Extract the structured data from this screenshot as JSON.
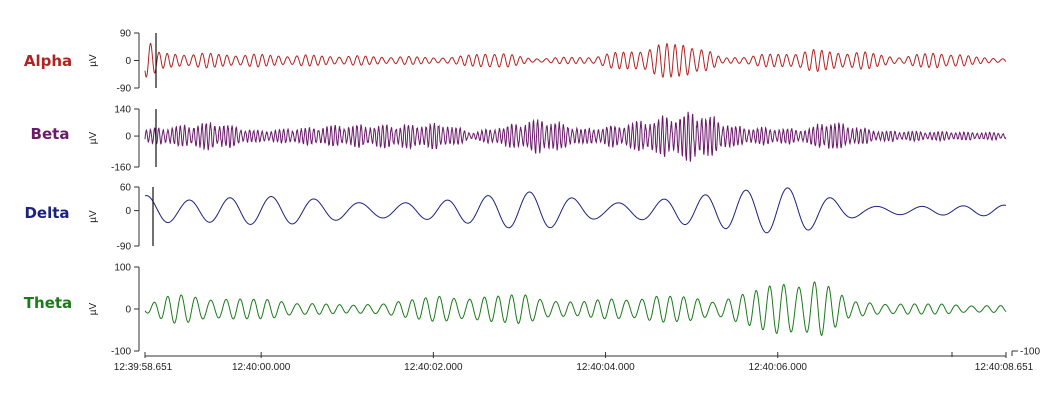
{
  "chart_data": {
    "type": "line",
    "layout": "stacked-traces",
    "x_unit": "time",
    "x_start": "12:39:58.651",
    "x_end": "12:40:08.651",
    "x_start_seconds": 0,
    "x_end_seconds": 10,
    "x_ticks": [
      {
        "seconds": 0,
        "label": "12:39:58.651"
      },
      {
        "seconds": 1.349,
        "label": "12:40:00.000"
      },
      {
        "seconds": 3.349,
        "label": "12:40:02.000"
      },
      {
        "seconds": 5.349,
        "label": "12:40:04.000"
      },
      {
        "seconds": 7.349,
        "label": "12:40:06.000"
      },
      {
        "seconds": 10,
        "label": "12:40:08.651"
      }
    ],
    "right_axis_label": "-100",
    "unit_label": "µV",
    "grid": false,
    "series": [
      {
        "name": "Alpha",
        "color": "#b22222",
        "ylim": [
          -90,
          90
        ],
        "yticks": [
          "90",
          "0",
          "-90"
        ],
        "dominant_frequency_hz": 10,
        "envelope_amplitude_uv": [
          [
            0.05,
            70
          ],
          [
            0.15,
            30
          ],
          [
            1.4,
            22
          ],
          [
            3.6,
            12
          ],
          [
            4.0,
            35
          ],
          [
            4.5,
            8
          ],
          [
            5.2,
            15
          ],
          [
            6.3,
            75
          ],
          [
            6.7,
            10
          ],
          [
            7.3,
            25
          ],
          [
            7.8,
            40
          ],
          [
            8.4,
            30
          ],
          [
            8.8,
            12
          ],
          [
            9.2,
            35
          ],
          [
            9.6,
            15
          ],
          [
            10,
            8
          ]
        ]
      },
      {
        "name": "Beta",
        "color": "#6a1b6a",
        "ylim": [
          -160,
          140
        ],
        "yticks": [
          "140",
          "0",
          "-160"
        ],
        "dominant_frequency_hz": 20,
        "envelope_amplitude_uv": [
          [
            0,
            40
          ],
          [
            0.8,
            80
          ],
          [
            1.3,
            30
          ],
          [
            2.2,
            60
          ],
          [
            3.5,
            70
          ],
          [
            3.8,
            20
          ],
          [
            4.6,
            100
          ],
          [
            5.1,
            40
          ],
          [
            5.6,
            70
          ],
          [
            6.4,
            140
          ],
          [
            6.9,
            50
          ],
          [
            7.7,
            40
          ],
          [
            7.9,
            90
          ],
          [
            8.5,
            30
          ],
          [
            10,
            20
          ]
        ]
      },
      {
        "name": "Delta",
        "color": "#1a237e",
        "ylim": [
          -90,
          60
        ],
        "yticks": [
          "60",
          "0",
          "-90"
        ],
        "dominant_frequency_hz": 2,
        "envelope_amplitude_uv": [
          [
            0,
            70
          ],
          [
            0.4,
            40
          ],
          [
            2.0,
            35
          ],
          [
            3.2,
            35
          ],
          [
            4.6,
            50
          ],
          [
            5.3,
            30
          ],
          [
            6.2,
            55
          ],
          [
            7.6,
            60
          ],
          [
            8.4,
            20
          ],
          [
            10,
            15
          ]
        ]
      },
      {
        "name": "Theta",
        "color": "#1b7a1b",
        "ylim": [
          -100,
          100
        ],
        "yticks": [
          "100",
          "0",
          "-100"
        ],
        "dominant_frequency_hz": 6,
        "envelope_amplitude_uv": [
          [
            0,
            10
          ],
          [
            0.3,
            40
          ],
          [
            1.5,
            25
          ],
          [
            2.4,
            10
          ],
          [
            3.4,
            35
          ],
          [
            4.4,
            40
          ],
          [
            5.0,
            20
          ],
          [
            6.0,
            40
          ],
          [
            6.6,
            25
          ],
          [
            7.8,
            95
          ],
          [
            8.2,
            20
          ],
          [
            9.5,
            12
          ],
          [
            10,
            10
          ]
        ]
      }
    ]
  }
}
